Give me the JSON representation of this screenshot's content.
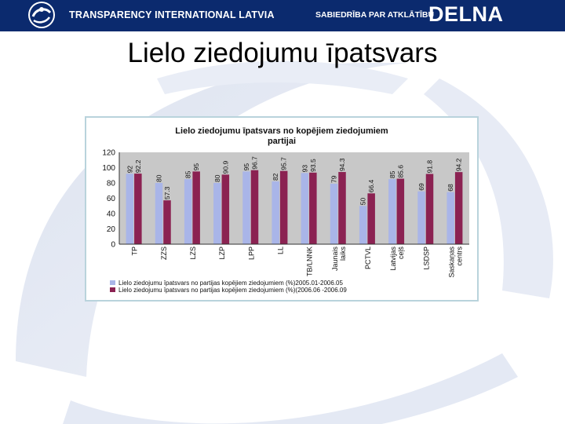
{
  "header": {
    "org_name": "TRANSPARENCY INTERNATIONAL LATVIA",
    "tagline": "SABIEDRĪBA PAR ATKLĀTĪBU",
    "brand": "DELNA"
  },
  "slide": {
    "title": "Lielo ziedojumu īpatsvars"
  },
  "colors": {
    "header_bg": "#0b2a6e",
    "series1": "#a9b5e8",
    "series2": "#8b2252",
    "plot_bg": "#c8c8c8",
    "frame": "#b9d3dc"
  },
  "chart_data": {
    "type": "bar",
    "title_line1": "Lielo ziedojumu īpatsvars no kopējiem ziedojumiem",
    "title_line2": "partijai",
    "categories": [
      [
        "TP"
      ],
      [
        "ZZS"
      ],
      [
        "LZS"
      ],
      [
        "LZP"
      ],
      [
        "LPP"
      ],
      [
        "LL"
      ],
      [
        "TB/LNNK"
      ],
      [
        "Jaunais",
        "laiks"
      ],
      [
        "PCTVL"
      ],
      [
        "Latvijas",
        "ceļš"
      ],
      [
        "LSDSP"
      ],
      [
        "Saskaņas",
        "centrs"
      ]
    ],
    "series": [
      {
        "name": "Lielo ziedojumu īpatsvars no partijas kopējiem ziedojumiem (%)2005.01-2006.05",
        "values": [
          92,
          80,
          85,
          80,
          95,
          82,
          93,
          79,
          50,
          85,
          69,
          68
        ],
        "labels": [
          "92",
          "80",
          "85",
          "80",
          "95",
          "82",
          "93",
          "79",
          "50",
          "85",
          "69",
          "68"
        ]
      },
      {
        "name": "Lielo ziedojumu īpatsvars no partijas kopējiem ziedojumiem (%)(2006.06 -2006.09",
        "values": [
          92.2,
          57.3,
          95,
          90.9,
          96.7,
          95.7,
          93.5,
          94.3,
          66.4,
          85.6,
          91.8,
          94.2
        ],
        "labels": [
          "92.2",
          "57.3",
          "95",
          "90.9",
          "96.7",
          "95.7",
          "93.5",
          "94.3",
          "66.4",
          "85.6",
          "91.8",
          "94.2"
        ]
      }
    ],
    "yticks": [
      "0",
      "20",
      "40",
      "60",
      "80",
      "100",
      "120"
    ],
    "ylim": [
      0,
      120
    ],
    "grid": false,
    "legend": "bottom"
  }
}
